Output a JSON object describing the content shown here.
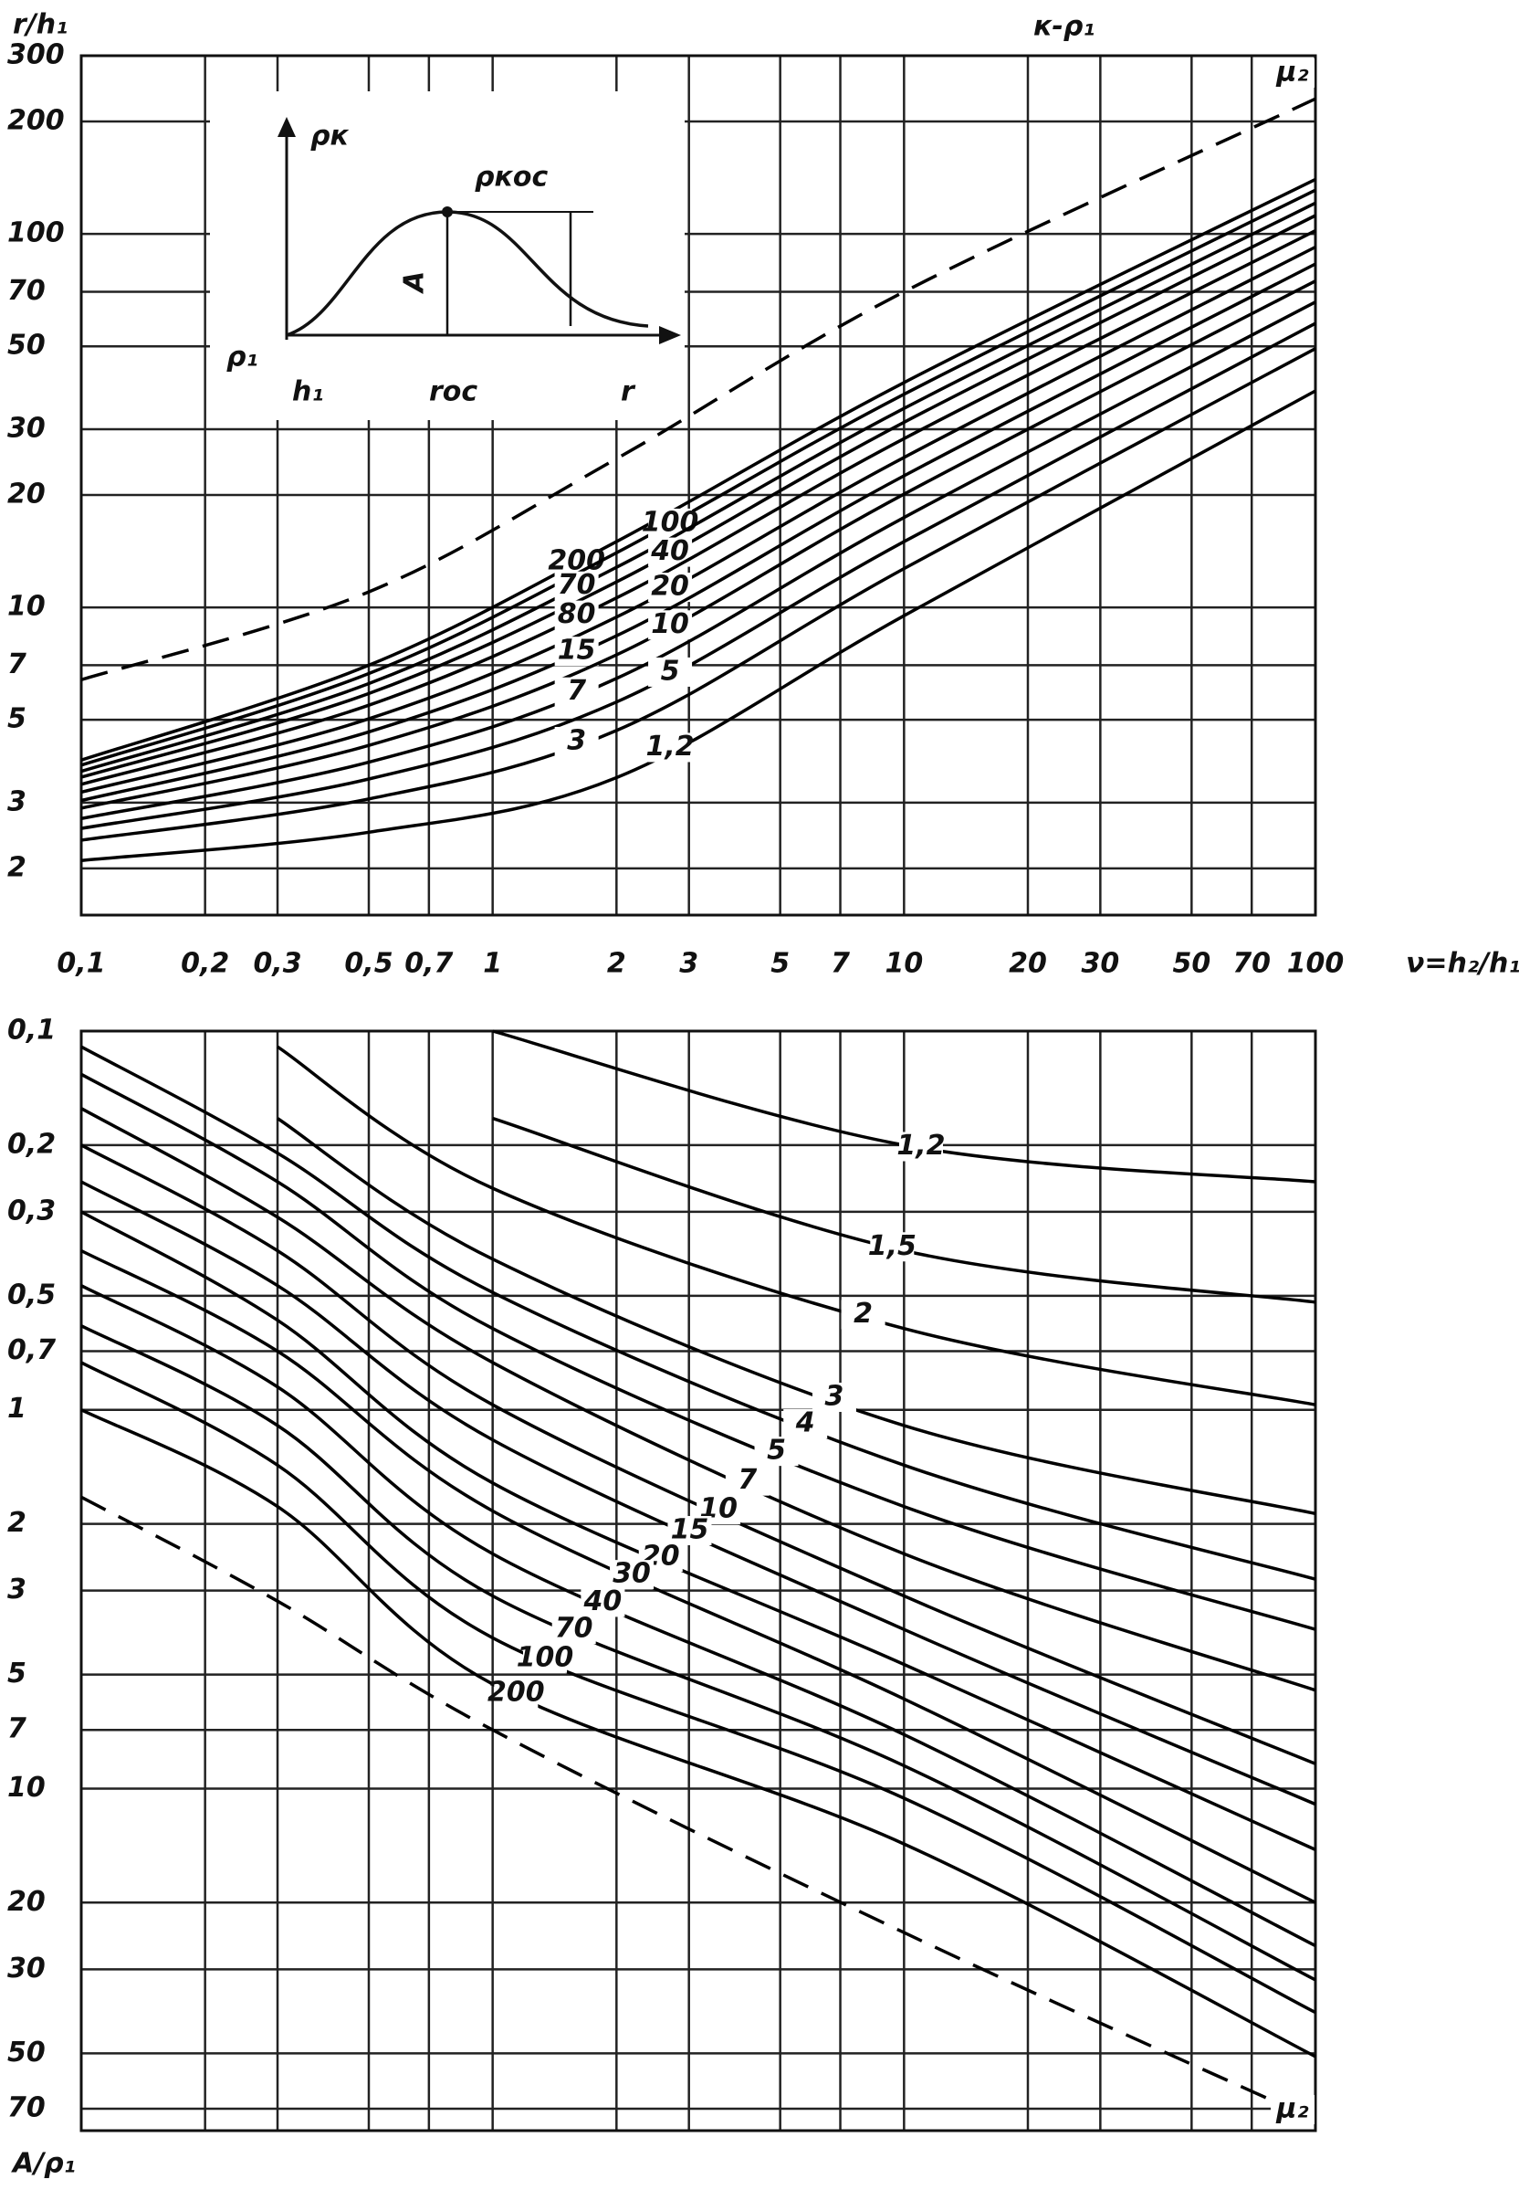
{
  "chart_data": [
    {
      "type": "line",
      "title": "к-ρ₁",
      "y_label": "r/h₁",
      "x_label": "ν=h₂/h₁",
      "xscale": "log",
      "yscale": "log",
      "grid": true,
      "color": "#000000",
      "xlim": [
        0.1,
        100
      ],
      "ylim": [
        1.5,
        300
      ],
      "xticks": [
        {
          "value": 0.1,
          "label": "0,1"
        },
        {
          "value": 0.2,
          "label": "0,2"
        },
        {
          "value": 0.3,
          "label": "0,3"
        },
        {
          "value": 0.5,
          "label": "0,5"
        },
        {
          "value": 0.7,
          "label": "0,7"
        },
        1,
        2,
        3,
        5,
        7,
        10,
        20,
        30,
        50,
        70,
        100
      ],
      "yticks": [
        300,
        200,
        100,
        70,
        50,
        30,
        20,
        10,
        7,
        5,
        3,
        2
      ],
      "inset": {
        "labels": [
          "ρк",
          "ρкос",
          "A",
          "ρ₁",
          "h₁",
          "rос",
          "r"
        ]
      },
      "x": [
        0.1,
        0.5,
        2,
        10,
        100
      ],
      "series": [
        {
          "name": "μ₂",
          "dash": true,
          "values": [
            6.4,
            11,
            25,
            70,
            230
          ]
        },
        {
          "name": "200",
          "values": [
            3.9,
            7,
            15,
            40,
            140
          ]
        },
        {
          "name": "100",
          "values": [
            3.78,
            6.65,
            14.0,
            37.2,
            131
          ]
        },
        {
          "name": "70",
          "values": [
            3.64,
            6.25,
            12.8,
            34.1,
            121
          ]
        },
        {
          "name": "40",
          "values": [
            3.51,
            5.88,
            11.7,
            31.3,
            112
          ]
        },
        {
          "name": "80",
          "values": [
            3.36,
            5.47,
            10.6,
            28.3,
            102
          ]
        },
        {
          "name": "20",
          "values": [
            3.2,
            5.03,
            9.42,
            25.2,
            92.2
          ]
        },
        {
          "name": "15",
          "values": [
            3.04,
            4.64,
            8.39,
            22.5,
            83.1
          ]
        },
        {
          "name": "10",
          "values": [
            2.9,
            4.27,
            7.46,
            20.1,
            74.8
          ]
        },
        {
          "name": "7",
          "values": [
            2.72,
            3.85,
            6.45,
            17.4,
            65.7
          ]
        },
        {
          "name": "5",
          "values": [
            2.56,
            3.47,
            5.58,
            15.0,
            57.6
          ]
        },
        {
          "name": "3",
          "values": [
            2.38,
            3.07,
            4.68,
            12.7,
            49.3
          ]
        },
        {
          "name": "1,2",
          "values": [
            2.1,
            2.5,
            3.5,
            9.5,
            38
          ]
        }
      ]
    },
    {
      "type": "line",
      "y_label": "A/ρ₁",
      "xscale": "log",
      "yscale": "log",
      "y_inverted": true,
      "grid": true,
      "color": "#000000",
      "xlim": [
        0.1,
        100
      ],
      "ylim": [
        0.1,
        80
      ],
      "yticks": [
        {
          "value": 0.1,
          "label": "0,1"
        },
        {
          "value": 0.2,
          "label": "0,2"
        },
        {
          "value": 0.3,
          "label": "0,3"
        },
        {
          "value": 0.5,
          "label": "0,5"
        },
        {
          "value": 0.7,
          "label": "0,7"
        },
        1,
        2,
        3,
        5,
        7,
        10,
        20,
        30,
        50,
        70
      ],
      "x": [
        0.1,
        0.3,
        1,
        10,
        100
      ],
      "series": [
        {
          "name": "1,2",
          "values": [
            null,
            null,
            0.1,
            0.2,
            0.25
          ]
        },
        {
          "name": "1,5",
          "values": [
            null,
            null,
            0.17,
            0.38,
            0.52
          ]
        },
        {
          "name": "2",
          "values": [
            null,
            0.11,
            0.26,
            0.61,
            0.97
          ]
        },
        {
          "name": "3",
          "values": [
            null,
            0.17,
            0.4,
            1.1,
            1.88
          ]
        },
        {
          "name": "4",
          "values": [
            0.11,
            0.21,
            0.49,
            1.4,
            2.8
          ]
        },
        {
          "name": "5",
          "values": [
            0.13,
            0.25,
            0.61,
            1.8,
            3.8
          ]
        },
        {
          "name": "7",
          "values": [
            0.16,
            0.31,
            0.75,
            2.4,
            5.5
          ]
        },
        {
          "name": "10",
          "values": [
            0.2,
            0.38,
            0.97,
            3.1,
            8.6
          ]
        },
        {
          "name": "15",
          "values": [
            0.25,
            0.47,
            1.2,
            3.8,
            11
          ]
        },
        {
          "name": "20",
          "values": [
            0.3,
            0.58,
            1.56,
            4.7,
            14.5
          ]
        },
        {
          "name": "30",
          "values": [
            0.38,
            0.7,
            1.85,
            5.8,
            20
          ]
        },
        {
          "name": "40",
          "values": [
            0.47,
            0.87,
            2.4,
            7.2,
            26
          ]
        },
        {
          "name": "70",
          "values": [
            0.6,
            1.1,
            3.1,
            8.7,
            32
          ]
        },
        {
          "name": "100",
          "values": [
            0.75,
            1.4,
            4,
            10.6,
            39
          ]
        },
        {
          "name": "200",
          "values": [
            1,
            1.8,
            5.3,
            14,
            51
          ]
        },
        {
          "name": "μ₂",
          "dash": true,
          "values": [
            1.7,
            3.2,
            7,
            24,
            75
          ]
        }
      ]
    }
  ]
}
